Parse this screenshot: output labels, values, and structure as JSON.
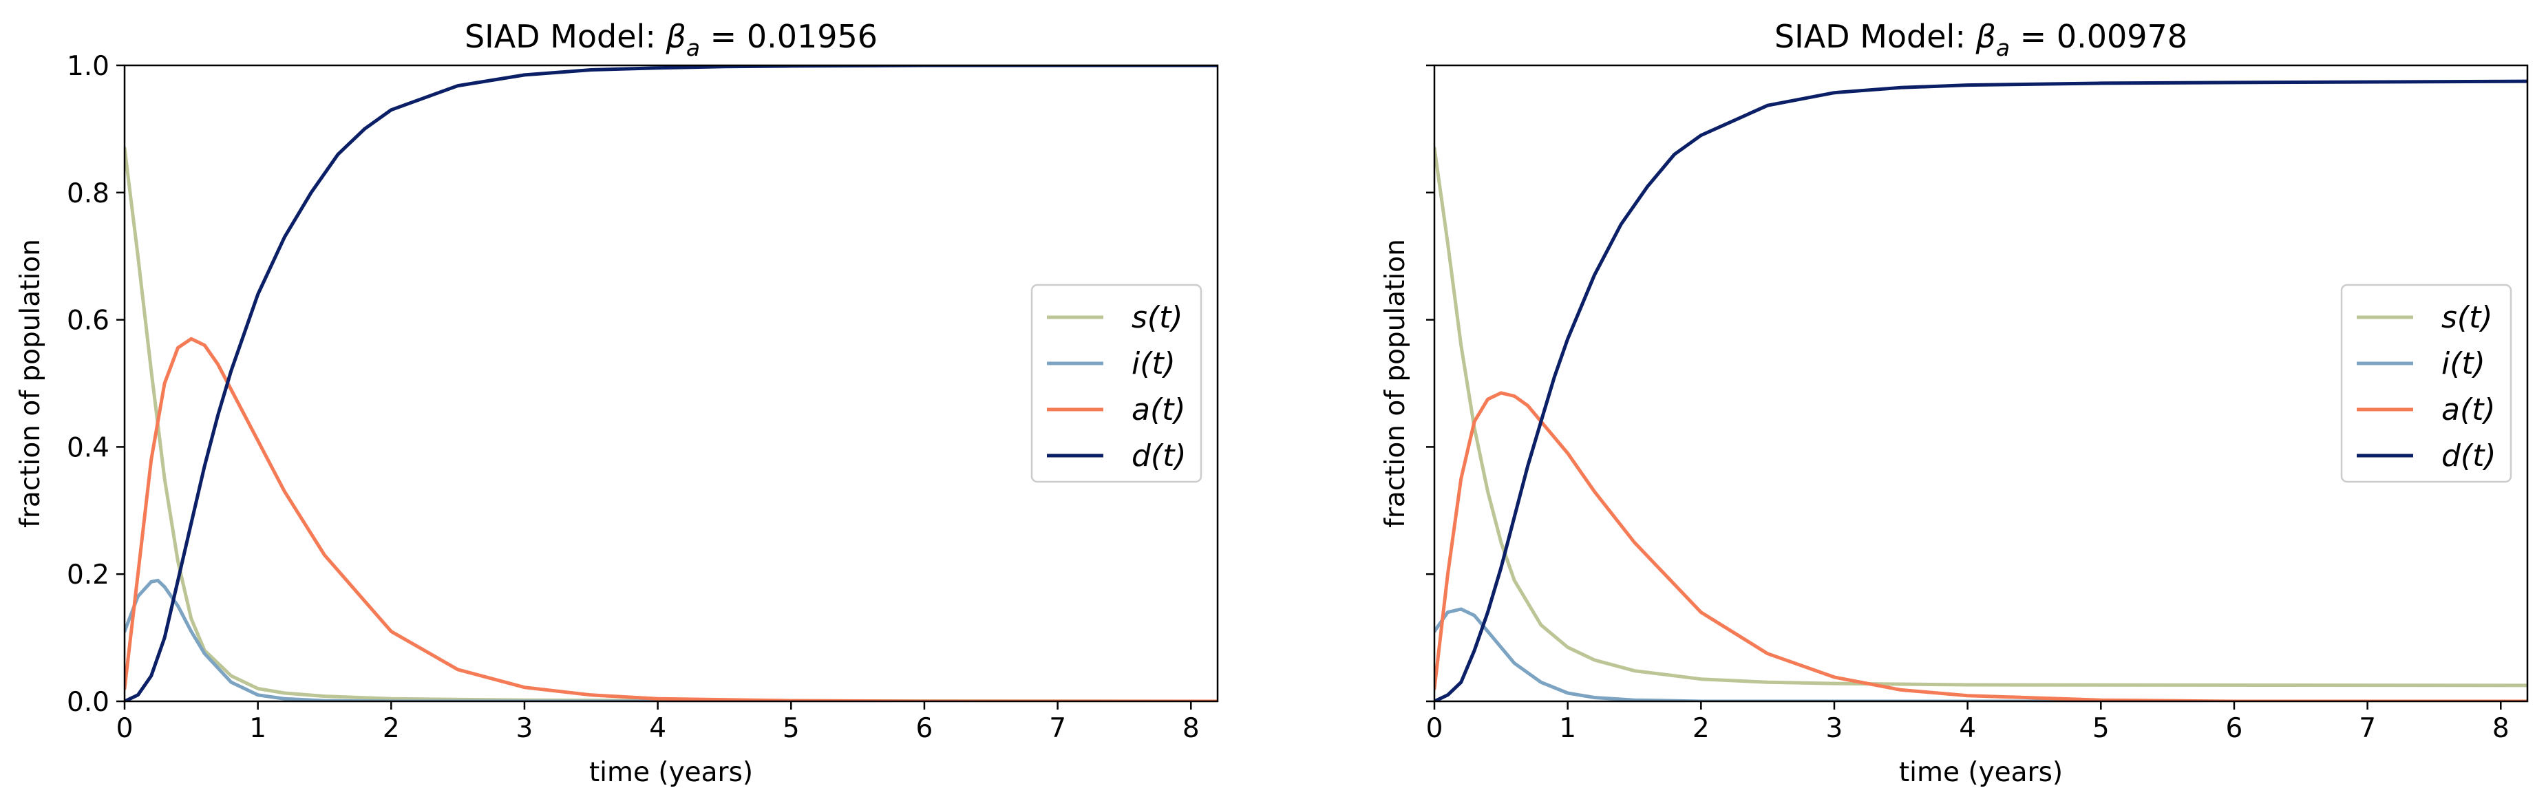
{
  "chart_data": [
    {
      "type": "line",
      "title": "SIAD Model: β_a = 0.01956",
      "title_parts": {
        "prefix": "SIAD Model: ",
        "symbol": "β",
        "subscript": "a",
        "suffix": " = 0.01956"
      },
      "xlabel": "time (years)",
      "ylabel": "fraction of population",
      "xlim": [
        0,
        8.2
      ],
      "ylim": [
        0,
        1
      ],
      "xticks": [
        "0",
        "1",
        "2",
        "3",
        "4",
        "5",
        "6",
        "7",
        "8"
      ],
      "yticks": [
        "0.0",
        "0.2",
        "0.4",
        "0.6",
        "0.8",
        "1.0"
      ],
      "grid": false,
      "legend_position": "center-right",
      "series": [
        {
          "name": "s(t)",
          "color": "#bcc596",
          "x": [
            0,
            0.1,
            0.2,
            0.3,
            0.4,
            0.5,
            0.6,
            0.8,
            1.0,
            1.2,
            1.5,
            2.0,
            3.0,
            4.0,
            8.2
          ],
          "y": [
            0.87,
            0.7,
            0.52,
            0.35,
            0.22,
            0.13,
            0.08,
            0.04,
            0.02,
            0.013,
            0.008,
            0.004,
            0.002,
            0.001,
            0.0
          ]
        },
        {
          "name": "i(t)",
          "color": "#7ca4c2",
          "x": [
            0,
            0.1,
            0.2,
            0.25,
            0.3,
            0.4,
            0.5,
            0.6,
            0.8,
            1.0,
            1.2,
            1.5,
            2.0,
            8.2
          ],
          "y": [
            0.11,
            0.165,
            0.188,
            0.19,
            0.18,
            0.15,
            0.11,
            0.075,
            0.03,
            0.01,
            0.004,
            0.001,
            0.0,
            0.0
          ]
        },
        {
          "name": "a(t)",
          "color": "#f47b56",
          "x": [
            0,
            0.1,
            0.2,
            0.3,
            0.4,
            0.5,
            0.6,
            0.7,
            0.8,
            1.0,
            1.2,
            1.5,
            2.0,
            2.5,
            3.0,
            3.5,
            4.0,
            5.0,
            6.0,
            8.2
          ],
          "y": [
            0.02,
            0.2,
            0.38,
            0.5,
            0.556,
            0.57,
            0.56,
            0.53,
            0.49,
            0.41,
            0.33,
            0.23,
            0.11,
            0.05,
            0.022,
            0.01,
            0.004,
            0.001,
            0.0,
            0.0
          ]
        },
        {
          "name": "d(t)",
          "color": "#0b1f66",
          "x": [
            0,
            0.1,
            0.2,
            0.3,
            0.4,
            0.5,
            0.6,
            0.7,
            0.8,
            0.9,
            1.0,
            1.2,
            1.4,
            1.6,
            1.8,
            2.0,
            2.5,
            3.0,
            3.5,
            4.0,
            4.5,
            5.0,
            6.0,
            8.2
          ],
          "y": [
            0.0,
            0.01,
            0.04,
            0.1,
            0.19,
            0.28,
            0.37,
            0.45,
            0.52,
            0.58,
            0.64,
            0.73,
            0.8,
            0.86,
            0.9,
            0.93,
            0.968,
            0.985,
            0.993,
            0.996,
            0.998,
            0.999,
            1.0,
            1.0
          ]
        }
      ]
    },
    {
      "type": "line",
      "title": "SIAD Model: β_a = 0.00978",
      "title_parts": {
        "prefix": "SIAD Model: ",
        "symbol": "β",
        "subscript": "a",
        "suffix": " = 0.00978"
      },
      "xlabel": "time (years)",
      "ylabel": "fraction of population",
      "xlim": [
        0,
        8.2
      ],
      "ylim": [
        0,
        1
      ],
      "xticks": [
        "0",
        "1",
        "2",
        "3",
        "4",
        "5",
        "6",
        "7",
        "8"
      ],
      "yticks": [],
      "grid": false,
      "legend_position": "center-right",
      "series": [
        {
          "name": "s(t)",
          "color": "#bcc596",
          "x": [
            0,
            0.1,
            0.2,
            0.3,
            0.4,
            0.5,
            0.6,
            0.8,
            1.0,
            1.2,
            1.5,
            2.0,
            2.5,
            3.0,
            4.0,
            8.2
          ],
          "y": [
            0.87,
            0.72,
            0.56,
            0.43,
            0.33,
            0.25,
            0.19,
            0.12,
            0.085,
            0.065,
            0.048,
            0.035,
            0.03,
            0.028,
            0.026,
            0.025
          ]
        },
        {
          "name": "i(t)",
          "color": "#7ca4c2",
          "x": [
            0,
            0.1,
            0.2,
            0.3,
            0.4,
            0.5,
            0.6,
            0.8,
            1.0,
            1.2,
            1.5,
            2.0,
            8.2
          ],
          "y": [
            0.11,
            0.14,
            0.145,
            0.135,
            0.11,
            0.085,
            0.06,
            0.03,
            0.013,
            0.006,
            0.002,
            0.0,
            0.0
          ]
        },
        {
          "name": "a(t)",
          "color": "#f47b56",
          "x": [
            0,
            0.1,
            0.2,
            0.3,
            0.4,
            0.5,
            0.6,
            0.7,
            0.8,
            1.0,
            1.2,
            1.5,
            2.0,
            2.5,
            3.0,
            3.5,
            4.0,
            5.0,
            6.0,
            8.2
          ],
          "y": [
            0.02,
            0.2,
            0.35,
            0.44,
            0.475,
            0.485,
            0.48,
            0.465,
            0.44,
            0.39,
            0.33,
            0.25,
            0.14,
            0.075,
            0.038,
            0.018,
            0.009,
            0.002,
            0.0,
            0.0
          ]
        },
        {
          "name": "d(t)",
          "color": "#0b1f66",
          "x": [
            0,
            0.1,
            0.2,
            0.3,
            0.4,
            0.5,
            0.6,
            0.7,
            0.8,
            0.9,
            1.0,
            1.2,
            1.4,
            1.6,
            1.8,
            2.0,
            2.5,
            3.0,
            3.5,
            4.0,
            5.0,
            6.0,
            8.2
          ],
          "y": [
            0.0,
            0.01,
            0.03,
            0.08,
            0.14,
            0.21,
            0.29,
            0.37,
            0.44,
            0.51,
            0.57,
            0.67,
            0.75,
            0.81,
            0.86,
            0.89,
            0.937,
            0.957,
            0.965,
            0.969,
            0.972,
            0.973,
            0.975
          ]
        }
      ]
    }
  ]
}
